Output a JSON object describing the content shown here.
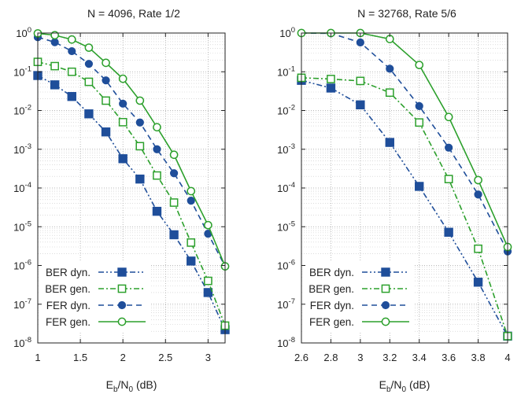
{
  "chart_data": [
    {
      "type": "line",
      "title": "N = 4096, Rate 1/2",
      "xlabel": {
        "main": "E",
        "sub1": "b",
        "mid": "/N",
        "sub2": "0",
        "unit": " (dB)"
      },
      "ylabel": "",
      "xlim": [
        1,
        3.2
      ],
      "ylim": [
        1e-08,
        1
      ],
      "yscale": "log",
      "grid": true,
      "legend_position": "bottom-left",
      "x_ticks": [
        {
          "value": 1,
          "label": "1"
        },
        {
          "value": 1.5,
          "label": "1.5"
        },
        {
          "value": 2,
          "label": "2"
        },
        {
          "value": 2.5,
          "label": "2.5"
        },
        {
          "value": 3,
          "label": "3"
        }
      ],
      "y_ticks": [
        {
          "value": 1,
          "base": "10",
          "exp": "0"
        },
        {
          "value": 0.1,
          "base": "10",
          "exp": "-1"
        },
        {
          "value": 0.01,
          "base": "10",
          "exp": "-2"
        },
        {
          "value": 0.001,
          "base": "10",
          "exp": "-3"
        },
        {
          "value": 0.0001,
          "base": "10",
          "exp": "-4"
        },
        {
          "value": 1e-05,
          "base": "10",
          "exp": "-5"
        },
        {
          "value": 1e-06,
          "base": "10",
          "exp": "-6"
        },
        {
          "value": 1e-07,
          "base": "10",
          "exp": "-7"
        },
        {
          "value": 1e-08,
          "base": "10",
          "exp": "-8"
        }
      ],
      "series": [
        {
          "name": "BER dyn.",
          "color": "#1f4e9a",
          "dash": "dashdotdot",
          "marker": "square-filled",
          "x": [
            1,
            1.2,
            1.4,
            1.6,
            1.8,
            2,
            2.2,
            2.4,
            2.6,
            2.8,
            3,
            3.2
          ],
          "y": [
            0.08,
            0.046,
            0.023,
            0.0082,
            0.0028,
            0.00057,
            0.00017,
            2.5e-05,
            6.2e-06,
            1.3e-06,
            2e-07,
            2.2e-08
          ]
        },
        {
          "name": "BER gen.",
          "color": "#2ca02c",
          "dash": "dashdot",
          "marker": "square-open",
          "x": [
            1,
            1.2,
            1.4,
            1.6,
            1.8,
            2,
            2.2,
            2.4,
            2.6,
            2.8,
            3,
            3.2
          ],
          "y": [
            0.18,
            0.14,
            0.1,
            0.055,
            0.018,
            0.005,
            0.0012,
            0.00021,
            4.2e-05,
            3.9e-06,
            4e-07,
            2.8e-08
          ]
        },
        {
          "name": "FER dyn.",
          "color": "#1f4e9a",
          "dash": "dash",
          "marker": "circle-filled",
          "x": [
            1,
            1.2,
            1.4,
            1.6,
            1.8,
            2,
            2.2,
            2.4,
            2.6,
            2.8,
            3,
            3.2
          ],
          "y": [
            0.78,
            0.58,
            0.34,
            0.16,
            0.06,
            0.015,
            0.0049,
            0.001,
            0.00024,
            4.7e-05,
            6.6e-06,
            9.5e-07
          ]
        },
        {
          "name": "FER gen.",
          "color": "#2ca02c",
          "dash": "solid",
          "marker": "circle-open",
          "x": [
            1,
            1.2,
            1.4,
            1.6,
            1.8,
            2,
            2.2,
            2.4,
            2.6,
            2.8,
            3,
            3.2
          ],
          "y": [
            0.98,
            0.88,
            0.68,
            0.42,
            0.17,
            0.066,
            0.018,
            0.0037,
            0.00072,
            8.3e-05,
            1.1e-05,
            9.5e-07
          ]
        }
      ]
    },
    {
      "type": "line",
      "title": "N = 32768, Rate 5/6",
      "xlabel": {
        "main": "E",
        "sub1": "b",
        "mid": "/N",
        "sub2": "0",
        "unit": " (dB)"
      },
      "ylabel": "",
      "xlim": [
        2.6,
        4
      ],
      "ylim": [
        1e-08,
        1
      ],
      "yscale": "log",
      "grid": true,
      "legend_position": "bottom-left",
      "x_ticks": [
        {
          "value": 2.6,
          "label": "2.6"
        },
        {
          "value": 2.8,
          "label": "2.8"
        },
        {
          "value": 3,
          "label": "3"
        },
        {
          "value": 3.2,
          "label": "3.2"
        },
        {
          "value": 3.4,
          "label": "3.4"
        },
        {
          "value": 3.6,
          "label": "3.6"
        },
        {
          "value": 3.8,
          "label": "3.8"
        },
        {
          "value": 4,
          "label": "4"
        }
      ],
      "y_ticks": [
        {
          "value": 1,
          "base": "10",
          "exp": "0"
        },
        {
          "value": 0.1,
          "base": "10",
          "exp": "-1"
        },
        {
          "value": 0.01,
          "base": "10",
          "exp": "-2"
        },
        {
          "value": 0.001,
          "base": "10",
          "exp": "-3"
        },
        {
          "value": 0.0001,
          "base": "10",
          "exp": "-4"
        },
        {
          "value": 1e-05,
          "base": "10",
          "exp": "-5"
        },
        {
          "value": 1e-06,
          "base": "10",
          "exp": "-6"
        },
        {
          "value": 1e-07,
          "base": "10",
          "exp": "-7"
        },
        {
          "value": 1e-08,
          "base": "10",
          "exp": "-8"
        }
      ],
      "series": [
        {
          "name": "BER dyn.",
          "color": "#1f4e9a",
          "dash": "dashdotdot",
          "marker": "square-filled",
          "x": [
            2.6,
            2.8,
            3,
            3.2,
            3.4,
            3.6,
            3.8,
            4
          ],
          "y": [
            0.06,
            0.038,
            0.014,
            0.0015,
            0.00011,
            7.2e-06,
            3.7e-07,
            1.5e-08
          ]
        },
        {
          "name": "BER gen.",
          "color": "#2ca02c",
          "dash": "dashdot",
          "marker": "square-open",
          "x": [
            2.6,
            2.8,
            3,
            3.2,
            3.4,
            3.6,
            3.8,
            4
          ],
          "y": [
            0.07,
            0.065,
            0.058,
            0.029,
            0.0049,
            0.00017,
            2.7e-06,
            1.5e-08
          ]
        },
        {
          "name": "FER dyn.",
          "color": "#1f4e9a",
          "dash": "dash",
          "marker": "circle-filled",
          "x": [
            2.6,
            2.8,
            3,
            3.2,
            3.4,
            3.6,
            3.8,
            4
          ],
          "y": [
            1,
            0.98,
            0.57,
            0.12,
            0.013,
            0.0011,
            6.8e-05,
            2.3e-06
          ]
        },
        {
          "name": "FER gen.",
          "color": "#2ca02c",
          "dash": "solid",
          "marker": "circle-open",
          "x": [
            2.6,
            2.8,
            3,
            3.2,
            3.4,
            3.6,
            3.8,
            4
          ],
          "y": [
            1,
            1,
            1,
            0.7,
            0.15,
            0.0068,
            0.00016,
            3e-06
          ]
        }
      ]
    }
  ]
}
